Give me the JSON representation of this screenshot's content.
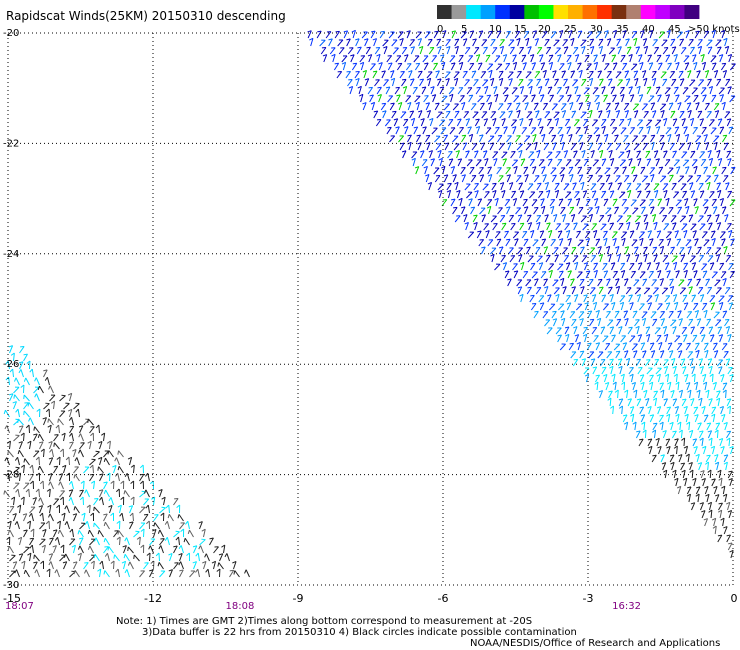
{
  "title": "Rapidscat Winds(25KM) 20150310 descending",
  "legend": {
    "colors": [
      "#303030",
      "#9a9a9a",
      "#00e8ff",
      "#00a0ff",
      "#0030ff",
      "#0000a0",
      "#00c000",
      "#00ff00",
      "#ffe000",
      "#ffb000",
      "#ff7000",
      "#ff3000",
      "#7a3010",
      "#b08070",
      "#ff00ff",
      "#c000ff",
      "#8000c0",
      "#400080"
    ],
    "labels": [
      "0",
      "5",
      "10",
      "15",
      "20",
      "25",
      "30",
      "35",
      "40",
      "45",
      ">50 knots"
    ]
  },
  "axes": {
    "x_ticks": [
      "-15",
      "-12",
      "-9",
      "-6",
      "-3",
      "0"
    ],
    "y_ticks": [
      "-20",
      "-22",
      "-24",
      "-26",
      "-28",
      "-30"
    ]
  },
  "times": [
    "18:07",
    "18:08",
    "16:32"
  ],
  "notes": [
    "Note: 1) Times are GMT 2)Times along bottom correspond to measurement at -20S",
    "3)Data buffer is 22 hrs from 20150310 4) Black circles indicate possible contamination",
    "NOAA/NESDIS/Office of Research and Applications"
  ],
  "chart_data": {
    "type": "wind-barb map",
    "title": "Rapidscat Winds(25KM) 20150310 descending",
    "xlim": [
      -15,
      0
    ],
    "ylim": [
      -30,
      -20
    ],
    "x_ticks": [
      -15,
      -12,
      -9,
      -6,
      -3,
      0
    ],
    "y_ticks": [
      -20,
      -22,
      -24,
      -26,
      -28,
      -30
    ],
    "grid": true,
    "speed_scale_knots": [
      0,
      5,
      10,
      15,
      20,
      25,
      30,
      35,
      40,
      45,
      50
    ],
    "swaths": [
      {
        "region": "east",
        "lon_range_at_top": [
          -8.9,
          0
        ],
        "speed_knots": "5-20",
        "dominant_speed_knots": 12
      },
      {
        "region": "southwest",
        "lon_range": [
          -15,
          -9.7
        ],
        "lat_range": [
          -30,
          -26.5
        ],
        "speed_knots": "0-10",
        "dominant_speed_knots": 3
      }
    ],
    "times_gmt": [
      {
        "lon": -15,
        "time": "18:07"
      },
      {
        "lon": -10.5,
        "time": "18:08"
      },
      {
        "lon": -2.5,
        "time": "16:32"
      }
    ]
  }
}
